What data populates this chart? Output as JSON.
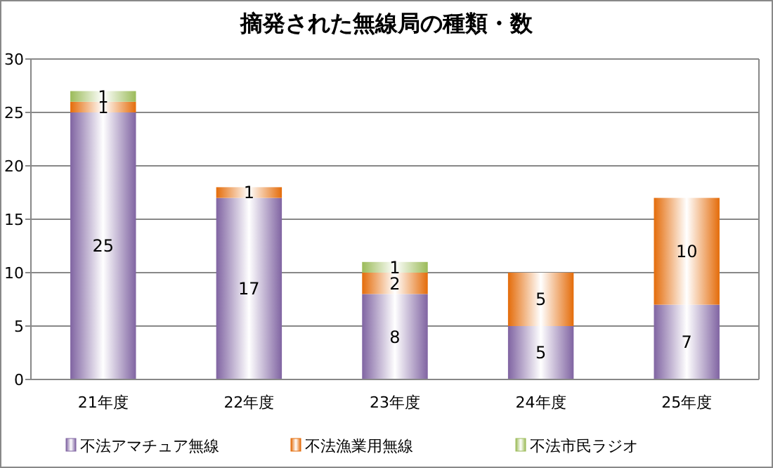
{
  "chart_data": {
    "type": "bar",
    "title": "摘発された無線局の種類・数",
    "categories": [
      "21年度",
      "22年度",
      "23年度",
      "24年度",
      "25年度"
    ],
    "stacked": true,
    "data_labels": true,
    "grid": "y",
    "legend": "bottom",
    "ylim": [
      0,
      30
    ],
    "yticks": [
      0,
      5,
      10,
      15,
      20,
      25,
      30
    ],
    "series": [
      {
        "name": "不法アマチュア無線",
        "color": "#8064a2",
        "values": [
          25,
          17,
          8,
          5,
          7
        ]
      },
      {
        "name": "不法漁業用無線",
        "color": "#e46c0a",
        "values": [
          1,
          1,
          2,
          5,
          10
        ]
      },
      {
        "name": "不法市民ラジオ",
        "color": "#9bbb59",
        "values": [
          1,
          null,
          1,
          null,
          null
        ]
      }
    ]
  }
}
